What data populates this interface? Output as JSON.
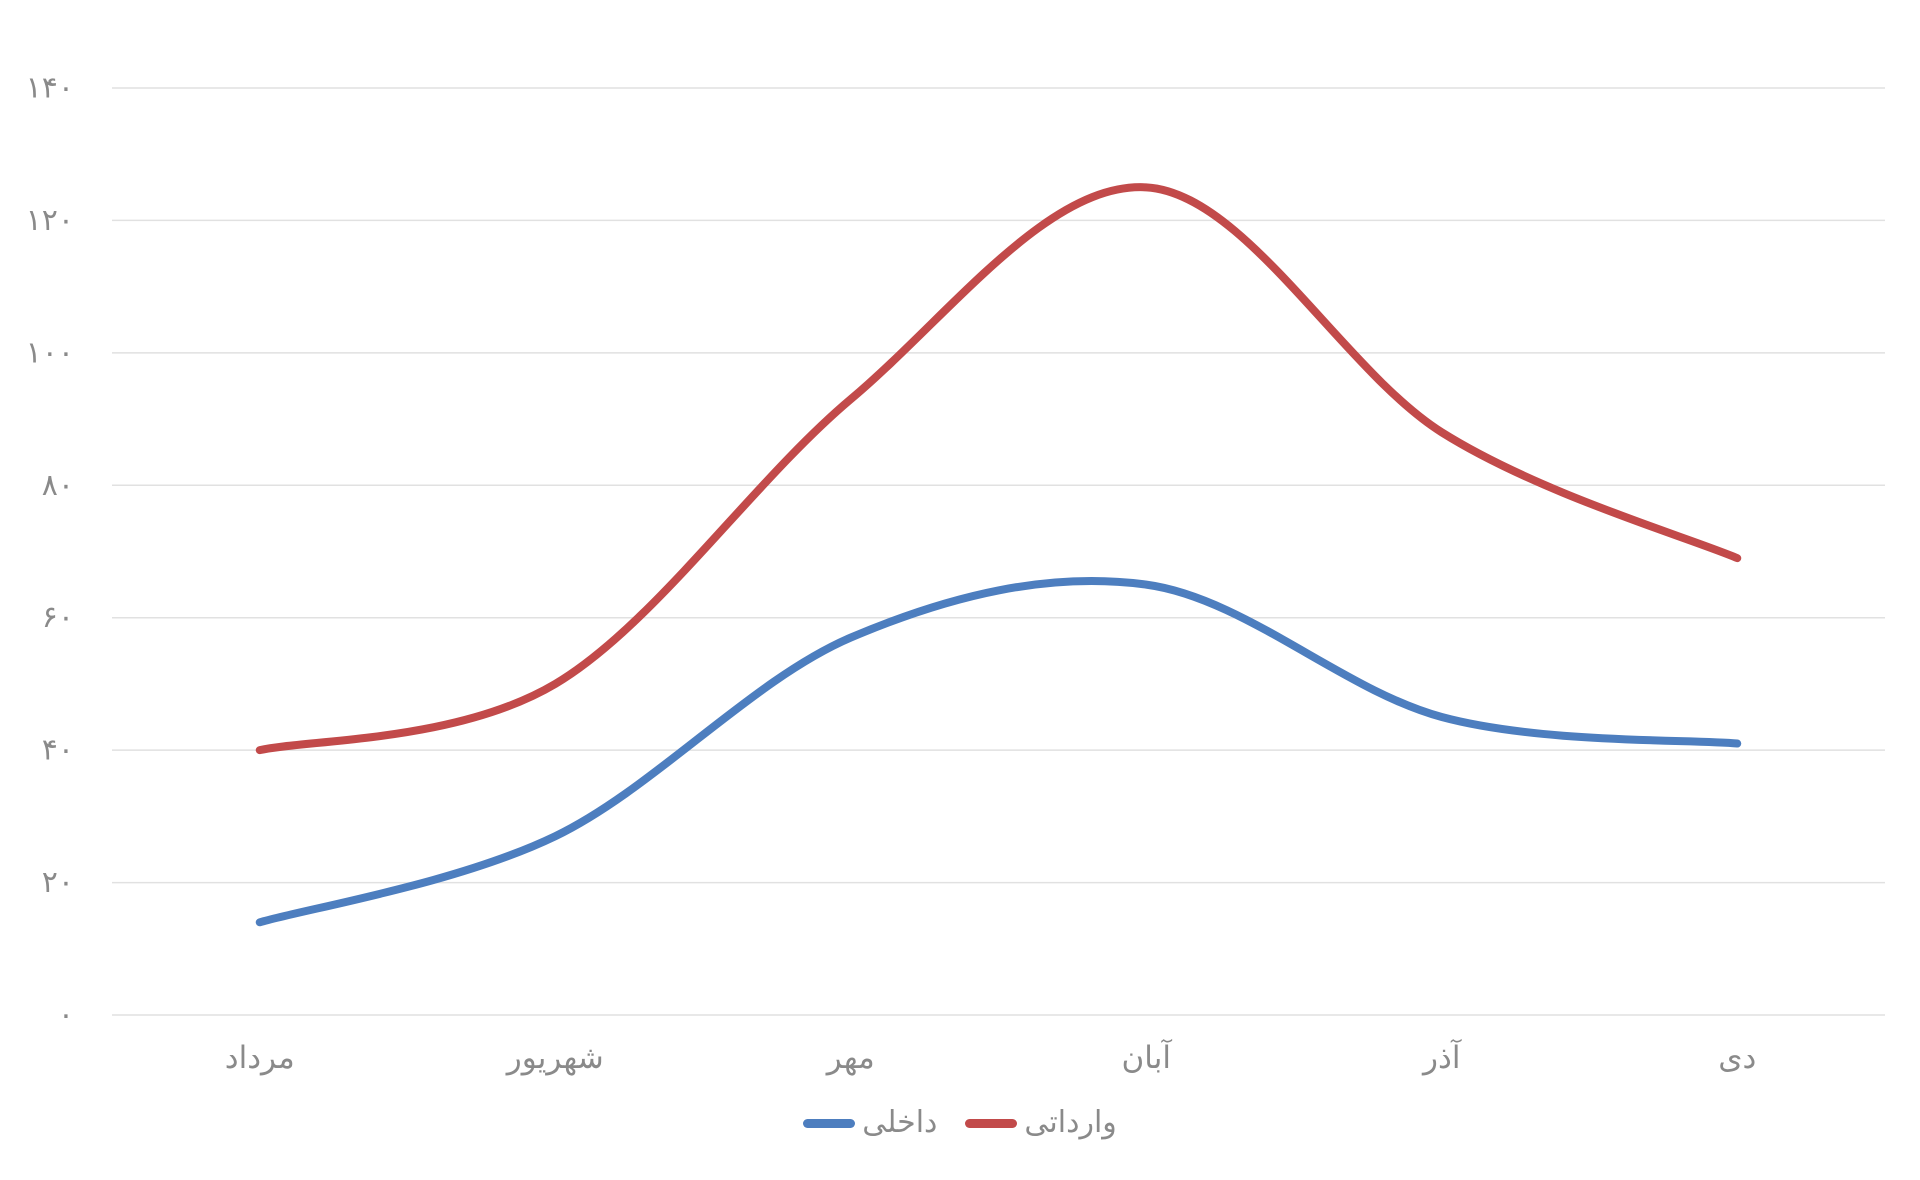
{
  "chart_data": {
    "type": "line",
    "title": "",
    "smooth": true,
    "categories": [
      "مرداد",
      "شهریور",
      "مهر",
      "آبان",
      "آذر",
      "دی"
    ],
    "series": [
      {
        "name": "داخلی",
        "color": "#4d7ebf",
        "values": [
          14,
          27,
          57,
          65,
          45,
          41
        ]
      },
      {
        "name": "وارداتی",
        "color": "#c24a4a",
        "values": [
          40,
          50,
          93,
          125,
          88,
          69
        ]
      }
    ],
    "ylim": [
      0,
      140
    ],
    "ytick_step": 20,
    "ytick_labels": [
      "۰",
      "۲۰",
      "۴۰",
      "۶۰",
      "۸۰",
      "۱۰۰",
      "۱۲۰",
      "۱۴۰"
    ],
    "grid": "horizontal-only",
    "legend_position": "bottom-center",
    "colors": {
      "background": "#ffffff",
      "gridline": "#e1e1e1",
      "axis_label": "#8a8a8a"
    }
  }
}
